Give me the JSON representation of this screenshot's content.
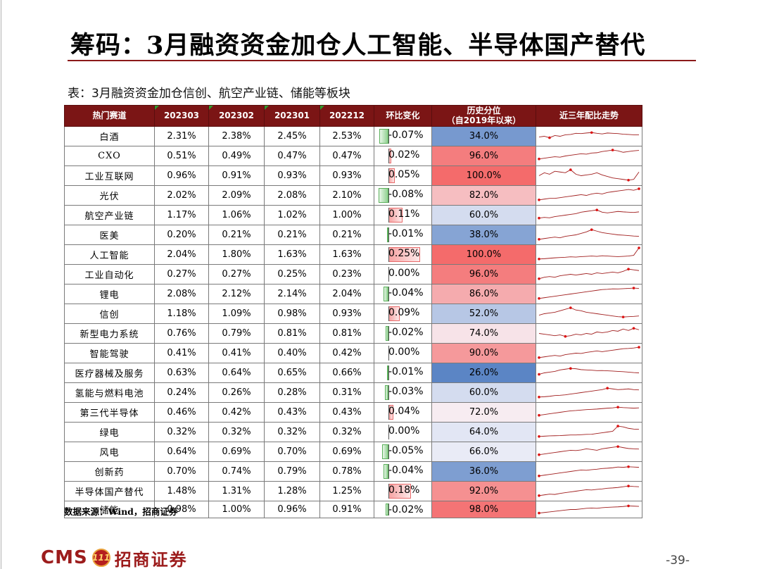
{
  "title": "筹码：3月融资资金加仓人工智能、半导体国产替代",
  "caption": "表：3月融资资金加仓信创、航空产业链、储能等板块",
  "headers": {
    "sector": "热门赛道",
    "m202303": "202303",
    "m202302": "202302",
    "m202301": "202301",
    "m202212": "202212",
    "change": "环比变化",
    "percentile_line1": "历史分位",
    "percentile_line2": "（自2019年以来）",
    "trend": "近三年配比走势"
  },
  "rows": [
    {
      "name": "白酒",
      "v202303": "2.31%",
      "v202302": "2.38%",
      "v202301": "2.45%",
      "v202212": "2.53%",
      "change": "-0.07%",
      "change_value": -0.07,
      "percentile": "34.0%",
      "percentile_value": 34.0
    },
    {
      "name": "CXO",
      "v202303": "0.51%",
      "v202302": "0.49%",
      "v202301": "0.47%",
      "v202212": "0.47%",
      "change": "0.02%",
      "change_value": 0.02,
      "percentile": "96.0%",
      "percentile_value": 96.0
    },
    {
      "name": "工业互联网",
      "v202303": "0.96%",
      "v202302": "0.91%",
      "v202301": "0.93%",
      "v202212": "0.93%",
      "change": "0.05%",
      "change_value": 0.05,
      "percentile": "100.0%",
      "percentile_value": 100.0
    },
    {
      "name": "光伏",
      "v202303": "2.02%",
      "v202302": "2.09%",
      "v202301": "2.08%",
      "v202212": "2.10%",
      "change": "-0.08%",
      "change_value": -0.08,
      "percentile": "82.0%",
      "percentile_value": 82.0
    },
    {
      "name": "航空产业链",
      "v202303": "1.17%",
      "v202302": "1.06%",
      "v202301": "1.02%",
      "v202212": "1.00%",
      "change": "0.11%",
      "change_value": 0.11,
      "percentile": "60.0%",
      "percentile_value": 60.0
    },
    {
      "name": "医美",
      "v202303": "0.20%",
      "v202302": "0.21%",
      "v202301": "0.21%",
      "v202212": "0.21%",
      "change": "-0.01%",
      "change_value": -0.01,
      "percentile": "38.0%",
      "percentile_value": 38.0
    },
    {
      "name": "人工智能",
      "v202303": "2.04%",
      "v202302": "1.80%",
      "v202301": "1.63%",
      "v202212": "1.63%",
      "change": "0.25%",
      "change_value": 0.25,
      "percentile": "100.0%",
      "percentile_value": 100.0
    },
    {
      "name": "工业自动化",
      "v202303": "0.27%",
      "v202302": "0.27%",
      "v202301": "0.25%",
      "v202212": "0.23%",
      "change": "0.00%",
      "change_value": 0.0,
      "percentile": "96.0%",
      "percentile_value": 96.0
    },
    {
      "name": "锂电",
      "v202303": "2.08%",
      "v202302": "2.12%",
      "v202301": "2.14%",
      "v202212": "2.04%",
      "change": "-0.04%",
      "change_value": -0.04,
      "percentile": "86.0%",
      "percentile_value": 86.0
    },
    {
      "name": "信创",
      "v202303": "1.18%",
      "v202302": "1.09%",
      "v202301": "0.98%",
      "v202212": "0.93%",
      "change": "0.09%",
      "change_value": 0.09,
      "percentile": "52.0%",
      "percentile_value": 52.0
    },
    {
      "name": "新型电力系统",
      "v202303": "0.76%",
      "v202302": "0.79%",
      "v202301": "0.81%",
      "v202212": "0.81%",
      "change": "-0.02%",
      "change_value": -0.02,
      "percentile": "74.0%",
      "percentile_value": 74.0
    },
    {
      "name": "智能驾驶",
      "v202303": "0.41%",
      "v202302": "0.41%",
      "v202301": "0.40%",
      "v202212": "0.42%",
      "change": "0.00%",
      "change_value": 0.0,
      "percentile": "90.0%",
      "percentile_value": 90.0
    },
    {
      "name": "医疗器械及服务",
      "v202303": "0.63%",
      "v202302": "0.64%",
      "v202301": "0.65%",
      "v202212": "0.66%",
      "change": "-0.01%",
      "change_value": -0.01,
      "percentile": "26.0%",
      "percentile_value": 26.0
    },
    {
      "name": "氢能与燃料电池",
      "v202303": "0.24%",
      "v202302": "0.26%",
      "v202301": "0.28%",
      "v202212": "0.31%",
      "change": "-0.03%",
      "change_value": -0.03,
      "percentile": "60.0%",
      "percentile_value": 60.0
    },
    {
      "name": "第三代半导体",
      "v202303": "0.46%",
      "v202302": "0.42%",
      "v202301": "0.43%",
      "v202212": "0.43%",
      "change": "0.04%",
      "change_value": 0.04,
      "percentile": "72.0%",
      "percentile_value": 72.0
    },
    {
      "name": "绿电",
      "v202303": "0.32%",
      "v202302": "0.32%",
      "v202301": "0.32%",
      "v202212": "0.32%",
      "change": "0.00%",
      "change_value": 0.0,
      "percentile": "64.0%",
      "percentile_value": 64.0
    },
    {
      "name": "风电",
      "v202303": "0.64%",
      "v202302": "0.69%",
      "v202301": "0.70%",
      "v202212": "0.69%",
      "change": "-0.05%",
      "change_value": -0.05,
      "percentile": "66.0%",
      "percentile_value": 66.0
    },
    {
      "name": "创新药",
      "v202303": "0.70%",
      "v202302": "0.74%",
      "v202301": "0.79%",
      "v202212": "0.78%",
      "change": "-0.04%",
      "change_value": -0.04,
      "percentile": "36.0%",
      "percentile_value": 36.0
    },
    {
      "name": "半导体国产替代",
      "v202303": "1.48%",
      "v202302": "1.31%",
      "v202301": "1.28%",
      "v202212": "1.25%",
      "change": "0.18%",
      "change_value": 0.18,
      "percentile": "92.0%",
      "percentile_value": 92.0
    },
    {
      "name": "储能",
      "v202303": "0.98%",
      "v202302": "1.00%",
      "v202301": "0.96%",
      "v202212": "0.91%",
      "change": "-0.02%",
      "change_value": -0.02,
      "percentile": "98.0%",
      "percentile_value": 98.0
    }
  ],
  "sparklines": [
    [
      0.45,
      0.5,
      0.4,
      0.55,
      0.5,
      0.6,
      0.62,
      0.7,
      0.68,
      0.72,
      0.75,
      0.7,
      0.66,
      0.72,
      0.7,
      0.68,
      0.64,
      0.62,
      0.6,
      0.6
    ],
    [
      0.3,
      0.35,
      0.4,
      0.45,
      0.42,
      0.5,
      0.55,
      0.6,
      0.65,
      0.62,
      0.7,
      0.72,
      0.8,
      0.85,
      0.9,
      0.85,
      0.75,
      0.8,
      0.85,
      0.88
    ],
    [
      0.5,
      0.7,
      0.6,
      0.8,
      0.75,
      0.7,
      0.9,
      0.6,
      0.5,
      0.55,
      0.6,
      0.7,
      0.55,
      0.45,
      0.35,
      0.3,
      0.25,
      0.2,
      0.25,
      0.75
    ],
    [
      0.2,
      0.25,
      0.3,
      0.3,
      0.35,
      0.4,
      0.45,
      0.5,
      0.55,
      0.5,
      0.6,
      0.65,
      0.6,
      0.7,
      0.75,
      0.8,
      0.85,
      0.9,
      0.85,
      0.95
    ],
    [
      0.3,
      0.35,
      0.32,
      0.4,
      0.45,
      0.5,
      0.55,
      0.6,
      0.7,
      0.75,
      0.8,
      0.85,
      0.7,
      0.65,
      0.7,
      0.75,
      0.72,
      0.7,
      0.68,
      0.72
    ],
    [
      0.2,
      0.25,
      0.3,
      0.35,
      0.3,
      0.4,
      0.45,
      0.5,
      0.6,
      0.7,
      0.85,
      0.75,
      0.65,
      0.6,
      0.55,
      0.5,
      0.48,
      0.45,
      0.42,
      0.4
    ],
    [
      0.2,
      0.22,
      0.25,
      0.28,
      0.3,
      0.32,
      0.35,
      0.33,
      0.36,
      0.38,
      0.4,
      0.38,
      0.42,
      0.4,
      0.38,
      0.36,
      0.38,
      0.4,
      0.45,
      0.95
    ],
    [
      0.2,
      0.3,
      0.35,
      0.3,
      0.4,
      0.45,
      0.5,
      0.45,
      0.5,
      0.55,
      0.5,
      0.6,
      0.55,
      0.6,
      0.65,
      0.6,
      0.7,
      0.85,
      0.8,
      0.75
    ],
    [
      0.2,
      0.25,
      0.3,
      0.35,
      0.4,
      0.45,
      0.5,
      0.55,
      0.6,
      0.65,
      0.7,
      0.75,
      0.8,
      0.82,
      0.85,
      0.84,
      0.86,
      0.88,
      0.9,
      0.88
    ],
    [
      0.4,
      0.5,
      0.55,
      0.6,
      0.7,
      0.8,
      0.9,
      0.75,
      0.7,
      0.6,
      0.55,
      0.5,
      0.45,
      0.4,
      0.35,
      0.3,
      0.28,
      0.3,
      0.32,
      0.35
    ],
    [
      0.5,
      0.45,
      0.4,
      0.35,
      0.4,
      0.3,
      0.35,
      0.45,
      0.4,
      0.5,
      0.45,
      0.6,
      0.55,
      0.6,
      0.7,
      0.65,
      0.8,
      0.7,
      0.85,
      0.75
    ],
    [
      0.2,
      0.25,
      0.3,
      0.35,
      0.3,
      0.4,
      0.45,
      0.5,
      0.48,
      0.55,
      0.6,
      0.65,
      0.6,
      0.65,
      0.7,
      0.75,
      0.8,
      0.82,
      0.85,
      0.9
    ],
    [
      0.4,
      0.5,
      0.55,
      0.6,
      0.7,
      0.75,
      0.8,
      0.78,
      0.72,
      0.7,
      0.68,
      0.65,
      0.66,
      0.64,
      0.62,
      0.6,
      0.58,
      0.55,
      0.52,
      0.5
    ],
    [
      0.2,
      0.22,
      0.25,
      0.3,
      0.32,
      0.35,
      0.4,
      0.45,
      0.5,
      0.55,
      0.6,
      0.65,
      0.7,
      0.8,
      0.75,
      0.7,
      0.72,
      0.75,
      0.7,
      0.68
    ],
    [
      0.3,
      0.35,
      0.4,
      0.45,
      0.5,
      0.55,
      0.6,
      0.62,
      0.65,
      0.68,
      0.7,
      0.72,
      0.75,
      0.78,
      0.8,
      0.85,
      0.82,
      0.8,
      0.78,
      0.8
    ],
    [
      0.2,
      0.22,
      0.24,
      0.25,
      0.26,
      0.28,
      0.3,
      0.3,
      0.32,
      0.34,
      0.35,
      0.4,
      0.45,
      0.5,
      0.55,
      0.9,
      0.85,
      0.75,
      0.7,
      0.68
    ],
    [
      0.3,
      0.35,
      0.4,
      0.45,
      0.5,
      0.55,
      0.6,
      0.58,
      0.62,
      0.7,
      0.65,
      0.6,
      0.7,
      0.75,
      0.8,
      0.85,
      0.78,
      0.72,
      0.7,
      0.68
    ],
    [
      0.2,
      0.25,
      0.3,
      0.35,
      0.4,
      0.45,
      0.5,
      0.55,
      0.6,
      0.58,
      0.62,
      0.65,
      0.7,
      0.72,
      0.75,
      0.8,
      0.78,
      0.82,
      0.8,
      0.78
    ],
    [
      0.2,
      0.25,
      0.3,
      0.28,
      0.35,
      0.4,
      0.45,
      0.5,
      0.55,
      0.6,
      0.58,
      0.62,
      0.65,
      0.7,
      0.72,
      0.75,
      0.8,
      0.85,
      0.82,
      0.8
    ],
    [
      0.2,
      0.25,
      0.3,
      0.35,
      0.4,
      0.45,
      0.5,
      0.5,
      0.55,
      0.6,
      0.62,
      0.6,
      0.65,
      0.68,
      0.7,
      0.72,
      0.75,
      0.8,
      0.78,
      0.76
    ]
  ],
  "source": "数据来源：Wind，招商证券",
  "brand": {
    "cms": "CMS",
    "logo": "111",
    "cn": "招商证券"
  },
  "page_number": "-39-",
  "colors": {
    "header_bg": "#7b1515",
    "title_rule": "#8b1a1a",
    "percentile_high": "#f46b6b",
    "percentile_mid": "#f7f5fb",
    "percentile_low": "#5b85c5",
    "spark_line": "#a11f1f"
  }
}
